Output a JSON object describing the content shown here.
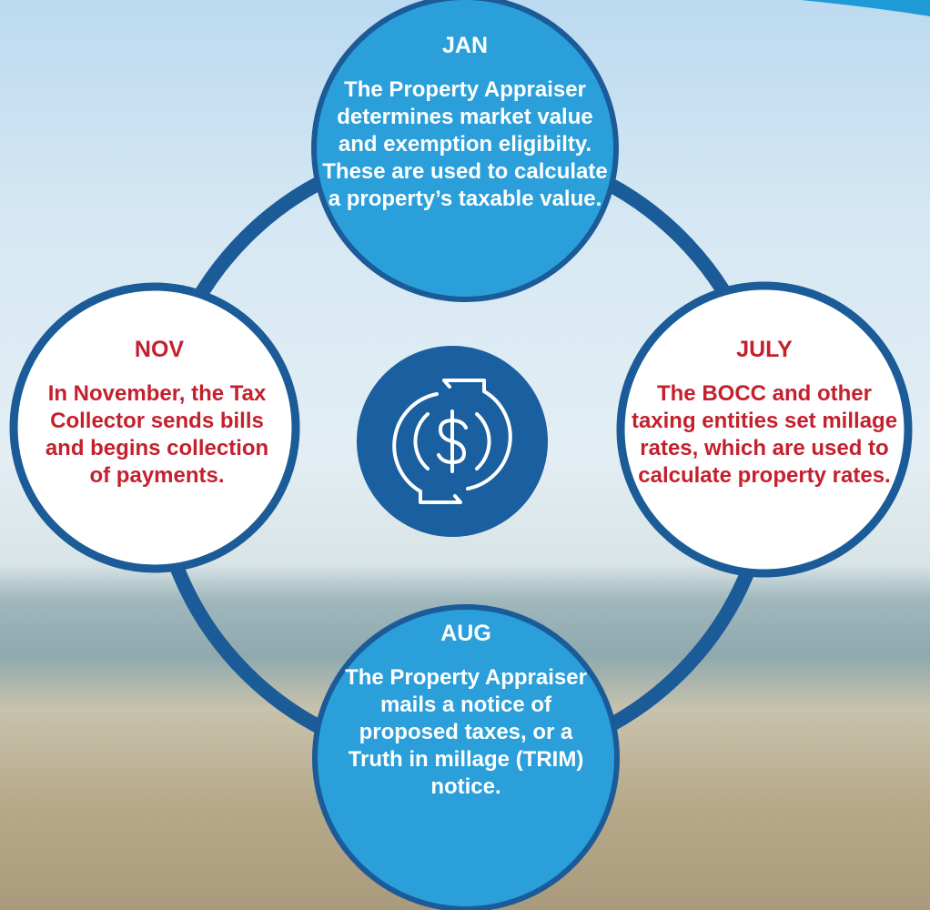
{
  "nodes": [
    {
      "label": "JAN",
      "text": "The Property Appraiser determines market value and exemption eligibilty. These are used to calculate a property’s taxable value."
    },
    {
      "label": "JULY",
      "text": "The BOCC and other taxing entities set millage rates, which are used to calculate property rates."
    },
    {
      "label": "AUG",
      "text": "The Property Appraiser mails a notice of proposed taxes, or a Truth in millage (TRIM) notice."
    },
    {
      "label": "NOV",
      "text": "In November, the Tax Collector sends bills and begins collection of payments."
    }
  ]
}
